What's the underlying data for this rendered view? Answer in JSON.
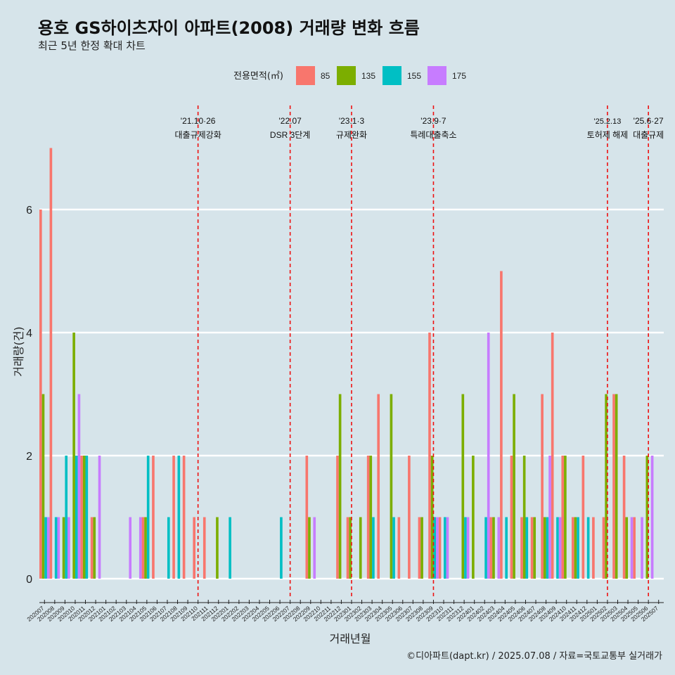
{
  "title": "용호 GS하이츠자이 아파트(2008) 거래량 변화 흐름",
  "subtitle": "최근 5년 한정 확대 차트",
  "caption": "©디아파트(dapt.kr) / 2025.07.08 / 자료=국토교통부 실거래가",
  "chart_data": {
    "type": "bar",
    "xlabel": "거래년월",
    "ylabel": "거래량(건)",
    "ylim": [
      0,
      7
    ],
    "yticks": [
      0,
      2,
      4,
      6
    ],
    "grid": true,
    "legend": {
      "title": "전용면적(㎡)",
      "placement": "top",
      "entries": [
        "85",
        "135",
        "155",
        "175"
      ],
      "colors": [
        "#F8766D",
        "#7CAE00",
        "#00BFC4",
        "#C77CFF"
      ]
    },
    "categories": [
      "202007",
      "202008",
      "202009",
      "202010",
      "202011",
      "202012",
      "202101",
      "202102",
      "202103",
      "202104",
      "202105",
      "202106",
      "202107",
      "202108",
      "202109",
      "202110",
      "202111",
      "202112",
      "202201",
      "202202",
      "202203",
      "202204",
      "202205",
      "202206",
      "202207",
      "202208",
      "202209",
      "202210",
      "202211",
      "202212",
      "202301",
      "202302",
      "202303",
      "202304",
      "202305",
      "202306",
      "202307",
      "202308",
      "202309",
      "202310",
      "202311",
      "202312",
      "202401",
      "202402",
      "202403",
      "202404",
      "202405",
      "202406",
      "202407",
      "202408",
      "202409",
      "202410",
      "202411",
      "202412",
      "202501",
      "202502",
      "202503",
      "202504",
      "202505",
      "202506",
      "202507"
    ],
    "series": [
      {
        "name": "85",
        "values": [
          6,
          7,
          0,
          0,
          2,
          1,
          0,
          0,
          0,
          0,
          1,
          2,
          0,
          2,
          2,
          1,
          1,
          0,
          0,
          0,
          0,
          0,
          0,
          0,
          0,
          0,
          2,
          0,
          0,
          2,
          1,
          0,
          2,
          3,
          0,
          1,
          2,
          1,
          4,
          1,
          0,
          0,
          0,
          0,
          1,
          5,
          2,
          1,
          1,
          3,
          4,
          2,
          1,
          2,
          1,
          1,
          3,
          2,
          1,
          0,
          0
        ]
      },
      {
        "name": "135",
        "values": [
          3,
          0,
          1,
          4,
          2,
          1,
          0,
          0,
          0,
          0,
          1,
          0,
          0,
          0,
          0,
          0,
          0,
          1,
          0,
          0,
          0,
          0,
          0,
          0,
          0,
          0,
          1,
          0,
          0,
          3,
          1,
          1,
          2,
          0,
          3,
          0,
          0,
          1,
          2,
          0,
          0,
          3,
          2,
          0,
          1,
          0,
          3,
          2,
          1,
          1,
          0,
          2,
          1,
          0,
          0,
          3,
          3,
          1,
          0,
          2,
          0
        ]
      },
      {
        "name": "155",
        "values": [
          1,
          1,
          2,
          2,
          2,
          0,
          0,
          0,
          0,
          0,
          2,
          0,
          1,
          2,
          0,
          0,
          0,
          0,
          1,
          0,
          0,
          0,
          0,
          1,
          0,
          0,
          0,
          0,
          0,
          0,
          0,
          0,
          1,
          0,
          1,
          0,
          0,
          0,
          1,
          1,
          0,
          1,
          0,
          1,
          0,
          1,
          0,
          1,
          0,
          1,
          1,
          0,
          1,
          1,
          0,
          0,
          0,
          0,
          0,
          0,
          0
        ]
      },
      {
        "name": "175",
        "values": [
          1,
          1,
          1,
          3,
          0,
          2,
          0,
          0,
          1,
          1,
          0,
          0,
          0,
          0,
          0,
          0,
          0,
          0,
          0,
          0,
          0,
          0,
          0,
          0,
          0,
          0,
          1,
          0,
          0,
          0,
          0,
          0,
          0,
          0,
          0,
          0,
          0,
          0,
          1,
          1,
          0,
          1,
          0,
          4,
          1,
          0,
          0,
          0,
          0,
          2,
          1,
          0,
          0,
          0,
          0,
          0,
          0,
          1,
          1,
          2,
          0
        ]
      }
    ],
    "events": [
      {
        "category": "202110",
        "date": "'21.10·26",
        "label": "대출규제강화"
      },
      {
        "category": "202207",
        "date": "'22.07",
        "label": "DSR 3단계"
      },
      {
        "category": "202301",
        "date": "'23.1·3",
        "label": "규제완화"
      },
      {
        "category": "202309",
        "date": "'23.9·7",
        "label": "특례대출축소"
      },
      {
        "category": "202502",
        "date": "'25.2.13",
        "label": "토허제 해제"
      },
      {
        "category": "202506",
        "date": "'25.6·27",
        "label": "대출규제"
      }
    ]
  }
}
